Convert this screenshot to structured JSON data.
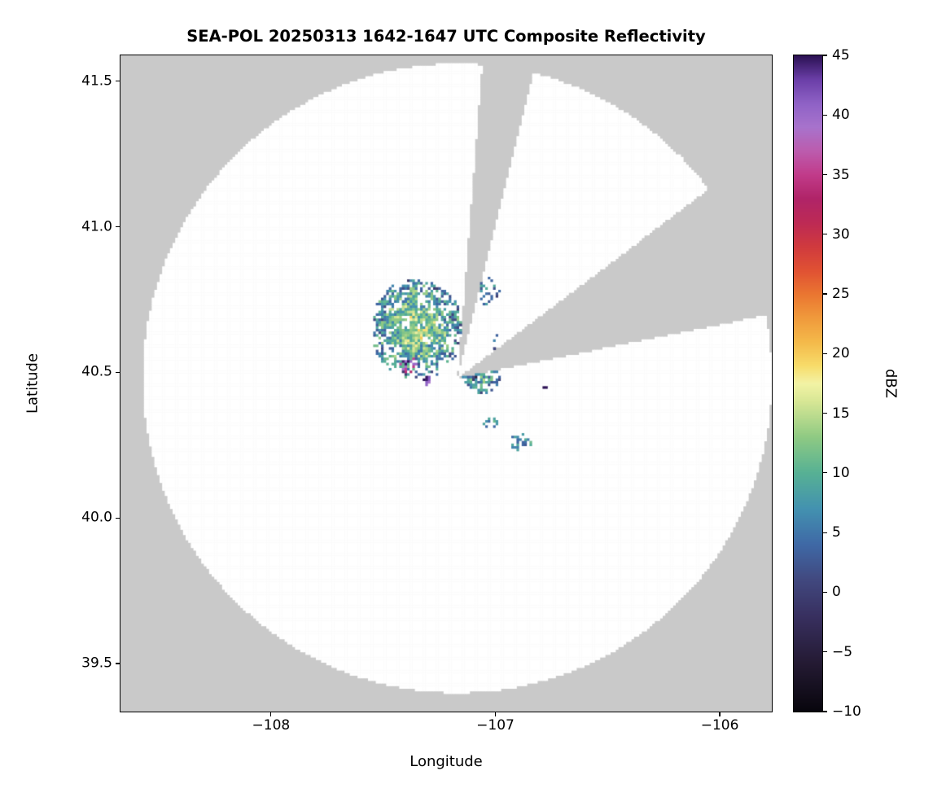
{
  "chart": {
    "title": "SEA-POL 20250313 1642-1647 UTC Composite Reflectivity",
    "xlabel": "Longitude",
    "ylabel": "Latitude",
    "colorbar": {
      "label": "dBZ"
    }
  },
  "chart_data": {
    "type": "heatmap",
    "title": "SEA-POL 20250313 1642-1647 UTC Composite Reflectivity",
    "xlabel": "Longitude",
    "ylabel": "Latitude",
    "xlim": [
      -108.671,
      -105.768
    ],
    "ylim": [
      39.335,
      41.589
    ],
    "grid": false,
    "x_ticks": [
      {
        "value": -108,
        "label": "−108"
      },
      {
        "value": -107,
        "label": "−107"
      },
      {
        "value": -106,
        "label": "−106"
      }
    ],
    "y_ticks": [
      {
        "value": 41.5,
        "label": "41.5"
      },
      {
        "value": 41.0,
        "label": "41.0"
      },
      {
        "value": 40.5,
        "label": "40.5"
      },
      {
        "value": 40.0,
        "label": "40.0"
      },
      {
        "value": 39.5,
        "label": "39.5"
      }
    ],
    "colorbar": {
      "label": "dBZ",
      "vmin": -10,
      "vmax": 45,
      "ticks": [
        {
          "value": 45,
          "label": "45"
        },
        {
          "value": 40,
          "label": "40"
        },
        {
          "value": 35,
          "label": "35"
        },
        {
          "value": 30,
          "label": "30"
        },
        {
          "value": 25,
          "label": "25"
        },
        {
          "value": 20,
          "label": "20"
        },
        {
          "value": 15,
          "label": "15"
        },
        {
          "value": 10,
          "label": "10"
        },
        {
          "value": 5,
          "label": "5"
        },
        {
          "value": 0,
          "label": "0"
        },
        {
          "value": -5,
          "label": "−5"
        },
        {
          "value": -10,
          "label": "−10"
        }
      ]
    },
    "radar": {
      "center_lon": -107.17,
      "center_lat": 40.48,
      "range_deg_lat": 1.08,
      "blocked_sectors_az_deg": [
        [
          4.5,
          14
        ],
        [
          53,
          78.5
        ]
      ],
      "background_color": "#c9c9c9",
      "coverage_color": "#ffffff"
    },
    "colormap_stops": [
      [
        -10,
        "#08060d"
      ],
      [
        -6,
        "#241a33"
      ],
      [
        -2,
        "#383060"
      ],
      [
        1,
        "#41487f"
      ],
      [
        4,
        "#3f69a6"
      ],
      [
        7,
        "#4392b0"
      ],
      [
        10,
        "#57b194"
      ],
      [
        13,
        "#8fca83"
      ],
      [
        16,
        "#d8e795"
      ],
      [
        17.5,
        "#f3f3a5"
      ],
      [
        19,
        "#f7dc6a"
      ],
      [
        21,
        "#f4b94a"
      ],
      [
        23,
        "#f09a3c"
      ],
      [
        25,
        "#ea7631"
      ],
      [
        27,
        "#e05133"
      ],
      [
        29,
        "#d03a3e"
      ],
      [
        31,
        "#bd2a55"
      ],
      [
        33,
        "#b02468"
      ],
      [
        35,
        "#c13b8a"
      ],
      [
        37,
        "#bc5cae"
      ],
      [
        39,
        "#a873cc"
      ],
      [
        41,
        "#8f62c6"
      ],
      [
        43,
        "#6b3fa8"
      ],
      [
        45,
        "#2c1254"
      ]
    ],
    "echo_regions": [
      {
        "name": "main-echo-blob",
        "lon": -107.35,
        "lat": 40.65,
        "rx": 0.205,
        "ry": 0.175,
        "base": 5,
        "gain": 11,
        "noise": 5.5,
        "density": 0.97,
        "seed": 11
      },
      {
        "name": "northeast-speckles",
        "lon": -107.05,
        "lat": 40.78,
        "rx": 0.075,
        "ry": 0.055,
        "base": 5,
        "gain": 2,
        "noise": 4,
        "density": 0.3,
        "seed": 22
      },
      {
        "name": "south-strong-cell-1",
        "lon": -107.39,
        "lat": 40.53,
        "rx": 0.042,
        "ry": 0.032,
        "base": 38,
        "gain": 5,
        "noise": 4,
        "density": 0.55,
        "seed": 33
      },
      {
        "name": "south-strong-cell-2",
        "lon": -107.315,
        "lat": 40.475,
        "rx": 0.028,
        "ry": 0.026,
        "base": 41,
        "gain": 3,
        "noise": 3,
        "density": 0.6,
        "seed": 44
      },
      {
        "name": "secondary-cluster",
        "lon": -107.06,
        "lat": 40.48,
        "rx": 0.085,
        "ry": 0.06,
        "base": 4,
        "gain": 6,
        "noise": 5.5,
        "density": 0.75,
        "seed": 55
      },
      {
        "name": "secondary-dark-patch",
        "lon": -107.105,
        "lat": 40.49,
        "rx": 0.03,
        "ry": 0.028,
        "base": -2,
        "gain": 2,
        "noise": 4,
        "density": 0.8,
        "seed": 66
      },
      {
        "name": "isolated-east-dot",
        "lon": -106.77,
        "lat": 40.447,
        "rx": 0.015,
        "ry": 0.011,
        "base": 44,
        "gain": 0,
        "noise": 1,
        "density": 1.0,
        "seed": 77
      },
      {
        "name": "southeast-band-1",
        "lon": -107.02,
        "lat": 40.325,
        "rx": 0.055,
        "ry": 0.022,
        "base": 6,
        "gain": 3,
        "noise": 4,
        "density": 0.5,
        "seed": 88
      },
      {
        "name": "southeast-band-2",
        "lon": -106.9,
        "lat": 40.26,
        "rx": 0.065,
        "ry": 0.03,
        "base": 6,
        "gain": 3,
        "noise": 4,
        "density": 0.45,
        "seed": 99
      },
      {
        "name": "mid-speckles",
        "lon": -107.02,
        "lat": 40.6,
        "rx": 0.05,
        "ry": 0.045,
        "base": 3,
        "gain": 3,
        "noise": 4,
        "density": 0.2,
        "seed": 101
      }
    ]
  }
}
